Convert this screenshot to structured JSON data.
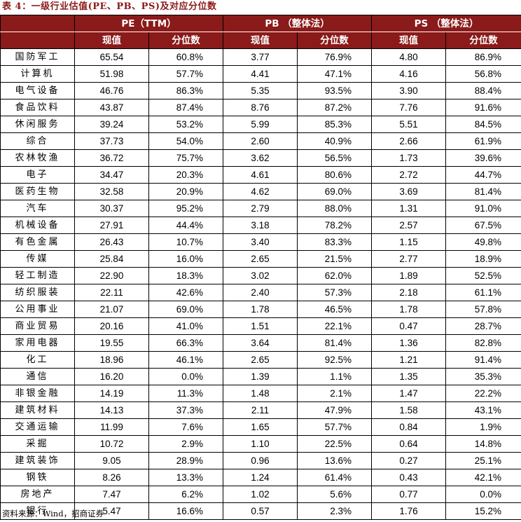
{
  "title": "表 4：一级行业估值(PE、PB、PS)及对应分位数",
  "headers": {
    "group1": "PE（TTM）",
    "group2": "PB （整体法）",
    "group3": "PS （整体法）",
    "sub_value": "现值",
    "sub_pct": "分位数"
  },
  "rows": [
    {
      "name": "国防军工",
      "pe": "65.54",
      "pe_pct": "60.8%",
      "pb": "3.77",
      "pb_pct": "76.9%",
      "ps": "4.80",
      "ps_pct": "86.9%"
    },
    {
      "name": "计算机",
      "pe": "51.98",
      "pe_pct": "57.7%",
      "pb": "4.41",
      "pb_pct": "47.1%",
      "ps": "4.16",
      "ps_pct": "56.8%"
    },
    {
      "name": "电气设备",
      "pe": "46.76",
      "pe_pct": "86.3%",
      "pb": "5.35",
      "pb_pct": "93.5%",
      "ps": "3.90",
      "ps_pct": "88.4%"
    },
    {
      "name": "食品饮料",
      "pe": "43.87",
      "pe_pct": "87.4%",
      "pb": "8.76",
      "pb_pct": "87.2%",
      "ps": "7.76",
      "ps_pct": "91.6%"
    },
    {
      "name": "休闲服务",
      "pe": "39.24",
      "pe_pct": "53.2%",
      "pb": "5.99",
      "pb_pct": "85.3%",
      "ps": "5.51",
      "ps_pct": "84.5%"
    },
    {
      "name": "综合",
      "pe": "37.73",
      "pe_pct": "54.0%",
      "pb": "2.60",
      "pb_pct": "40.9%",
      "ps": "2.66",
      "ps_pct": "61.9%"
    },
    {
      "name": "农林牧渔",
      "pe": "36.72",
      "pe_pct": "75.7%",
      "pb": "3.62",
      "pb_pct": "56.5%",
      "ps": "1.73",
      "ps_pct": "39.6%"
    },
    {
      "name": "电子",
      "pe": "34.47",
      "pe_pct": "20.3%",
      "pb": "4.61",
      "pb_pct": "80.6%",
      "ps": "2.72",
      "ps_pct": "44.7%"
    },
    {
      "name": "医药生物",
      "pe": "32.58",
      "pe_pct": "20.9%",
      "pb": "4.62",
      "pb_pct": "69.0%",
      "ps": "3.69",
      "ps_pct": "81.4%"
    },
    {
      "name": "汽车",
      "pe": "30.37",
      "pe_pct": "95.2%",
      "pb": "2.79",
      "pb_pct": "88.0%",
      "ps": "1.31",
      "ps_pct": "91.0%"
    },
    {
      "name": "机械设备",
      "pe": "27.91",
      "pe_pct": "44.4%",
      "pb": "3.18",
      "pb_pct": "78.2%",
      "ps": "2.57",
      "ps_pct": "67.5%"
    },
    {
      "name": "有色金属",
      "pe": "26.43",
      "pe_pct": "10.7%",
      "pb": "3.40",
      "pb_pct": "83.3%",
      "ps": "1.15",
      "ps_pct": "49.8%"
    },
    {
      "name": "传媒",
      "pe": "25.84",
      "pe_pct": "16.0%",
      "pb": "2.65",
      "pb_pct": "21.5%",
      "ps": "2.77",
      "ps_pct": "18.9%"
    },
    {
      "name": "轻工制造",
      "pe": "22.90",
      "pe_pct": "18.3%",
      "pb": "3.02",
      "pb_pct": "62.0%",
      "ps": "1.89",
      "ps_pct": "52.5%"
    },
    {
      "name": "纺织服装",
      "pe": "22.11",
      "pe_pct": "42.6%",
      "pb": "2.40",
      "pb_pct": "57.3%",
      "ps": "2.18",
      "ps_pct": "61.1%"
    },
    {
      "name": "公用事业",
      "pe": "21.07",
      "pe_pct": "69.0%",
      "pb": "1.78",
      "pb_pct": "46.5%",
      "ps": "1.78",
      "ps_pct": "57.8%"
    },
    {
      "name": "商业贸易",
      "pe": "20.16",
      "pe_pct": "41.0%",
      "pb": "1.51",
      "pb_pct": "22.1%",
      "ps": "0.47",
      "ps_pct": "28.7%"
    },
    {
      "name": "家用电器",
      "pe": "19.55",
      "pe_pct": "66.3%",
      "pb": "3.64",
      "pb_pct": "81.4%",
      "ps": "1.36",
      "ps_pct": "82.8%"
    },
    {
      "name": "化工",
      "pe": "18.96",
      "pe_pct": "46.1%",
      "pb": "2.65",
      "pb_pct": "92.5%",
      "ps": "1.21",
      "ps_pct": "91.4%"
    },
    {
      "name": "通信",
      "pe": "16.20",
      "pe_pct": "0.0%",
      "pb": "1.39",
      "pb_pct": "1.1%",
      "ps": "1.35",
      "ps_pct": "35.3%"
    },
    {
      "name": "非银金融",
      "pe": "14.19",
      "pe_pct": "11.3%",
      "pb": "1.48",
      "pb_pct": "2.1%",
      "ps": "1.47",
      "ps_pct": "22.2%"
    },
    {
      "name": "建筑材料",
      "pe": "14.13",
      "pe_pct": "37.3%",
      "pb": "2.11",
      "pb_pct": "47.9%",
      "ps": "1.58",
      "ps_pct": "43.1%"
    },
    {
      "name": "交通运输",
      "pe": "11.99",
      "pe_pct": "7.6%",
      "pb": "1.65",
      "pb_pct": "57.7%",
      "ps": "0.84",
      "ps_pct": "1.9%"
    },
    {
      "name": "采掘",
      "pe": "10.72",
      "pe_pct": "2.9%",
      "pb": "1.10",
      "pb_pct": "22.5%",
      "ps": "0.64",
      "ps_pct": "14.8%"
    },
    {
      "name": "建筑装饰",
      "pe": "9.05",
      "pe_pct": "28.9%",
      "pb": "0.96",
      "pb_pct": "13.6%",
      "ps": "0.27",
      "ps_pct": "25.1%"
    },
    {
      "name": "钢铁",
      "pe": "8.26",
      "pe_pct": "13.3%",
      "pb": "1.24",
      "pb_pct": "61.4%",
      "ps": "0.43",
      "ps_pct": "42.1%"
    },
    {
      "name": "房地产",
      "pe": "7.47",
      "pe_pct": "6.2%",
      "pb": "1.02",
      "pb_pct": "5.6%",
      "ps": "0.77",
      "ps_pct": "0.0%"
    },
    {
      "name": "银行",
      "pe": "5.47",
      "pe_pct": "16.6%",
      "pb": "0.57",
      "pb_pct": "2.3%",
      "ps": "1.76",
      "ps_pct": "15.2%"
    }
  ],
  "source": "资料来源：Wind，招商证券",
  "colors": {
    "header_bg": "#8B1A1A",
    "title": "#8B1A1A"
  }
}
